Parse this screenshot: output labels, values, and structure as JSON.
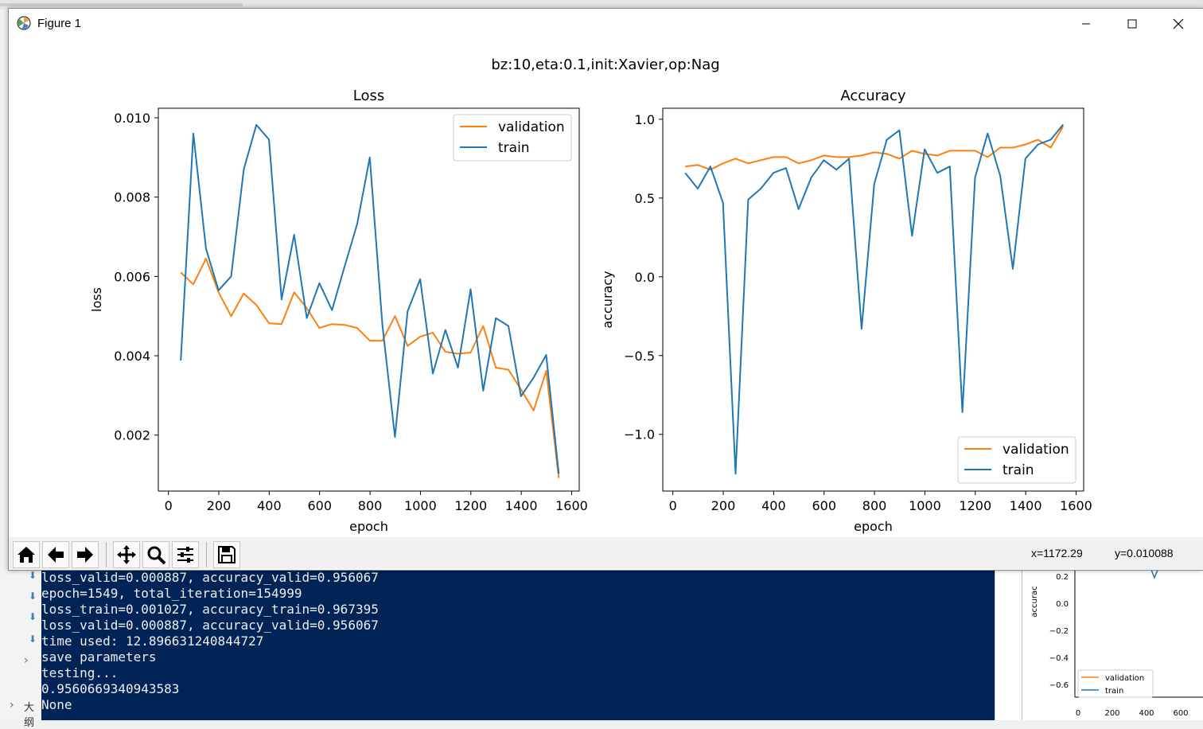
{
  "window": {
    "title": "Figure 1",
    "suptitle": "bz:10,eta:0.1,init:Xavier,op:Nag"
  },
  "toolbar": {
    "buttons": [
      "home-icon",
      "back-arrow-icon",
      "forward-arrow-icon",
      "pan-icon",
      "zoom-icon",
      "configure-subplots-icon",
      "save-icon"
    ],
    "coord_x": "x=1172.29",
    "coord_y": "y=0.010088"
  },
  "console": {
    "lines": [
      "loss_valid=0.000887, accuracy_valid=0.956067",
      "epoch=1549, total_iteration=154999",
      "loss_train=0.001027, accuracy_train=0.967395",
      "loss_valid=0.000887, accuracy_valid=0.956067",
      "time used: 12.896631240844727",
      "save parameters",
      "testing...",
      "0.9560669340943583",
      "None"
    ],
    "side_label": "大纲"
  },
  "colors": {
    "train": "#1f77b4",
    "validation": "#ff7f0e",
    "console_bg": "#012456"
  },
  "chart_data": [
    {
      "type": "line",
      "title": "Loss",
      "xlabel": "epoch",
      "ylabel": "loss",
      "xlim": [
        -40,
        1630
      ],
      "ylim": [
        0.00059,
        0.01024
      ],
      "xticks": [
        0,
        200,
        400,
        600,
        800,
        1000,
        1200,
        1400,
        1600
      ],
      "xtick_labels": [
        "0",
        "200",
        "400",
        "600",
        "800",
        "1000",
        "1200",
        "1400",
        "1600"
      ],
      "yticks": [
        0.002,
        0.004,
        0.006,
        0.008,
        0.01
      ],
      "ytick_labels": [
        "0.002",
        "0.004",
        "0.006",
        "0.008",
        "0.010"
      ],
      "legend": {
        "position": "upper right",
        "entries": [
          "validation",
          "train"
        ]
      },
      "grid": false,
      "x": [
        49,
        99,
        149,
        199,
        249,
        299,
        349,
        399,
        449,
        499,
        549,
        599,
        649,
        699,
        749,
        799,
        849,
        899,
        949,
        999,
        1049,
        1099,
        1149,
        1199,
        1249,
        1299,
        1349,
        1399,
        1449,
        1499,
        1549
      ],
      "series": [
        {
          "name": "validation",
          "color": "#ff7f0e",
          "values": [
            0.0061,
            0.0058,
            0.00645,
            0.0056,
            0.005,
            0.00557,
            0.00528,
            0.00482,
            0.0048,
            0.0056,
            0.0052,
            0.0047,
            0.0048,
            0.00478,
            0.0047,
            0.00438,
            0.00438,
            0.005,
            0.00425,
            0.00448,
            0.00458,
            0.0041,
            0.00405,
            0.00408,
            0.00475,
            0.0037,
            0.00365,
            0.00315,
            0.00262,
            0.00362,
            0.00092
          ]
        },
        {
          "name": "train",
          "color": "#1f77b4",
          "values": [
            0.00388,
            0.0096,
            0.0067,
            0.00565,
            0.006,
            0.0087,
            0.00982,
            0.00945,
            0.00542,
            0.00705,
            0.00495,
            0.00583,
            0.00515,
            0.00625,
            0.00732,
            0.009,
            0.00478,
            0.00195,
            0.00512,
            0.00593,
            0.00355,
            0.00465,
            0.0037,
            0.00568,
            0.00312,
            0.00495,
            0.00475,
            0.00298,
            0.00345,
            0.00402,
            0.00103
          ]
        }
      ]
    },
    {
      "type": "line",
      "title": "Accuracy",
      "xlabel": "epoch",
      "ylabel": "accuracy",
      "xlim": [
        -40,
        1630
      ],
      "ylim": [
        -1.36,
        1.07
      ],
      "xticks": [
        0,
        200,
        400,
        600,
        800,
        1000,
        1200,
        1400,
        1600
      ],
      "xtick_labels": [
        "0",
        "200",
        "400",
        "600",
        "800",
        "1000",
        "1200",
        "1400",
        "1600"
      ],
      "yticks": [
        -1.0,
        -0.5,
        0.0,
        0.5,
        1.0
      ],
      "ytick_labels": [
        "−1.0",
        "−0.5",
        "0.0",
        "0.5",
        "1.0"
      ],
      "legend": {
        "position": "lower right",
        "entries": [
          "validation",
          "train"
        ]
      },
      "grid": false,
      "x": [
        49,
        99,
        149,
        199,
        249,
        299,
        349,
        399,
        449,
        499,
        549,
        599,
        649,
        699,
        749,
        799,
        849,
        899,
        949,
        999,
        1049,
        1099,
        1149,
        1199,
        1249,
        1299,
        1349,
        1399,
        1449,
        1499,
        1549
      ],
      "series": [
        {
          "name": "validation",
          "color": "#ff7f0e",
          "values": [
            0.7,
            0.71,
            0.68,
            0.72,
            0.75,
            0.72,
            0.74,
            0.76,
            0.76,
            0.72,
            0.74,
            0.77,
            0.76,
            0.76,
            0.77,
            0.79,
            0.78,
            0.75,
            0.8,
            0.78,
            0.77,
            0.8,
            0.8,
            0.8,
            0.76,
            0.82,
            0.82,
            0.84,
            0.87,
            0.82,
            0.956
          ]
        },
        {
          "name": "train",
          "color": "#1f77b4",
          "values": [
            0.66,
            0.56,
            0.7,
            0.47,
            -1.25,
            0.49,
            0.56,
            0.66,
            0.69,
            0.43,
            0.63,
            0.74,
            0.68,
            0.75,
            -0.33,
            0.59,
            0.87,
            0.93,
            0.26,
            0.81,
            0.66,
            0.7,
            -0.86,
            0.63,
            0.91,
            0.64,
            0.05,
            0.75,
            0.84,
            0.87,
            0.967
          ]
        }
      ]
    }
  ],
  "mini_plot": {
    "ylabel": "accurac",
    "ytick_labels": [
      "0.2",
      "0.0",
      "−0.2",
      "−0.4",
      "−0.6"
    ],
    "xtick_labels": [
      "0",
      "200",
      "400",
      "600"
    ],
    "legend": [
      "validation",
      "train"
    ]
  }
}
